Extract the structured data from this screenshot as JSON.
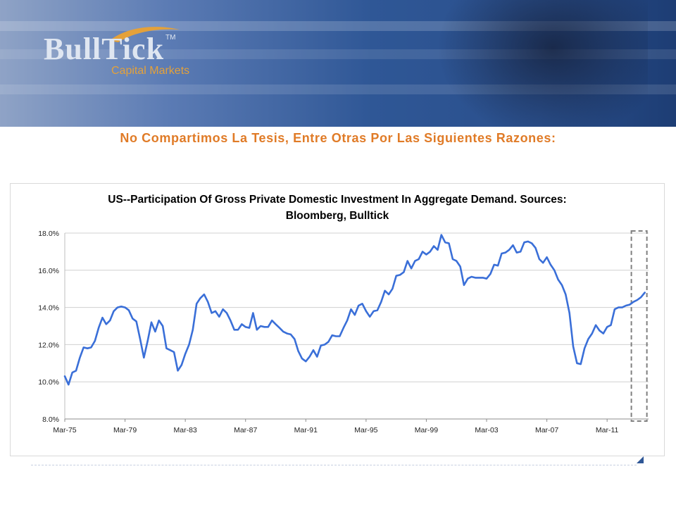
{
  "logo": {
    "brand": "BullTick",
    "trademark": "TM",
    "subtitle": "Capital Markets"
  },
  "slide": {
    "title": "No Compartimos La Tesis, Entre Otras Por Las Siguientes Razones:"
  },
  "colors": {
    "title": "#e07b27",
    "line": "#3a6fd8",
    "highlight_box": "#7f7f7f"
  },
  "chart_data": {
    "type": "line",
    "title_lines": [
      "US--Participation Of Gross Private Domestic Investment In Aggregate Demand. Sources:",
      "Bloomberg, Bulltick"
    ],
    "xlabel": "",
    "ylabel": "",
    "ylim": [
      8.0,
      18.0
    ],
    "yticks": [
      "8.0%",
      "10.0%",
      "12.0%",
      "14.0%",
      "16.0%",
      "18.0%"
    ],
    "ytick_values": [
      8,
      10,
      12,
      14,
      16,
      18
    ],
    "xticks": [
      "Mar-75",
      "Mar-79",
      "Mar-83",
      "Mar-87",
      "Mar-91",
      "Mar-95",
      "Mar-99",
      "Mar-03",
      "Mar-07",
      "Mar-11"
    ],
    "xtick_years": [
      1975,
      1979,
      1983,
      1987,
      1991,
      1995,
      1999,
      2003,
      2007,
      2011
    ],
    "xlim": [
      1975,
      2013.75
    ],
    "grid": true,
    "highlight_range": [
      2012.75,
      2013.5
    ],
    "series": [
      {
        "values": [
          [
            1975.0,
            10.3
          ],
          [
            1975.25,
            9.85
          ],
          [
            1975.5,
            10.5
          ],
          [
            1975.75,
            10.6
          ],
          [
            1976.0,
            11.3
          ],
          [
            1976.25,
            11.85
          ],
          [
            1976.5,
            11.8
          ],
          [
            1976.75,
            11.85
          ],
          [
            1977.0,
            12.2
          ],
          [
            1977.25,
            12.9
          ],
          [
            1977.5,
            13.45
          ],
          [
            1977.75,
            13.1
          ],
          [
            1978.0,
            13.3
          ],
          [
            1978.25,
            13.8
          ],
          [
            1978.5,
            14.0
          ],
          [
            1978.75,
            14.05
          ],
          [
            1979.0,
            14.0
          ],
          [
            1979.25,
            13.85
          ],
          [
            1979.5,
            13.4
          ],
          [
            1979.75,
            13.25
          ],
          [
            1980.0,
            12.3
          ],
          [
            1980.25,
            11.3
          ],
          [
            1980.5,
            12.2
          ],
          [
            1980.75,
            13.2
          ],
          [
            1981.0,
            12.7
          ],
          [
            1981.25,
            13.3
          ],
          [
            1981.5,
            13.0
          ],
          [
            1981.75,
            11.8
          ],
          [
            1982.0,
            11.7
          ],
          [
            1982.25,
            11.6
          ],
          [
            1982.5,
            10.6
          ],
          [
            1982.75,
            10.9
          ],
          [
            1983.0,
            11.5
          ],
          [
            1983.25,
            12.0
          ],
          [
            1983.5,
            12.8
          ],
          [
            1983.75,
            14.2
          ],
          [
            1984.0,
            14.5
          ],
          [
            1984.25,
            14.7
          ],
          [
            1984.5,
            14.3
          ],
          [
            1984.75,
            13.7
          ],
          [
            1985.0,
            13.8
          ],
          [
            1985.25,
            13.5
          ],
          [
            1985.5,
            13.9
          ],
          [
            1985.75,
            13.7
          ],
          [
            1986.0,
            13.3
          ],
          [
            1986.25,
            12.8
          ],
          [
            1986.5,
            12.8
          ],
          [
            1986.75,
            13.1
          ],
          [
            1987.0,
            12.95
          ],
          [
            1987.25,
            12.9
          ],
          [
            1987.5,
            13.7
          ],
          [
            1987.75,
            12.8
          ],
          [
            1988.0,
            13.0
          ],
          [
            1988.25,
            12.95
          ],
          [
            1988.5,
            12.95
          ],
          [
            1988.75,
            13.3
          ],
          [
            1989.0,
            13.1
          ],
          [
            1989.25,
            12.9
          ],
          [
            1989.5,
            12.7
          ],
          [
            1989.75,
            12.6
          ],
          [
            1990.0,
            12.55
          ],
          [
            1990.25,
            12.3
          ],
          [
            1990.5,
            11.65
          ],
          [
            1990.75,
            11.25
          ],
          [
            1991.0,
            11.1
          ],
          [
            1991.25,
            11.35
          ],
          [
            1991.5,
            11.7
          ],
          [
            1991.75,
            11.35
          ],
          [
            1992.0,
            11.95
          ],
          [
            1992.25,
            12.0
          ],
          [
            1992.5,
            12.15
          ],
          [
            1992.75,
            12.5
          ],
          [
            1993.0,
            12.45
          ],
          [
            1993.25,
            12.45
          ],
          [
            1993.5,
            12.9
          ],
          [
            1993.75,
            13.3
          ],
          [
            1994.0,
            13.9
          ],
          [
            1994.25,
            13.6
          ],
          [
            1994.5,
            14.1
          ],
          [
            1994.75,
            14.2
          ],
          [
            1995.0,
            13.8
          ],
          [
            1995.25,
            13.5
          ],
          [
            1995.5,
            13.8
          ],
          [
            1995.75,
            13.85
          ],
          [
            1996.0,
            14.3
          ],
          [
            1996.25,
            14.9
          ],
          [
            1996.5,
            14.7
          ],
          [
            1996.75,
            15.0
          ],
          [
            1997.0,
            15.7
          ],
          [
            1997.25,
            15.75
          ],
          [
            1997.5,
            15.9
          ],
          [
            1997.75,
            16.5
          ],
          [
            1998.0,
            16.1
          ],
          [
            1998.25,
            16.5
          ],
          [
            1998.5,
            16.6
          ],
          [
            1998.75,
            17.0
          ],
          [
            1999.0,
            16.85
          ],
          [
            1999.25,
            17.0
          ],
          [
            1999.5,
            17.3
          ],
          [
            1999.75,
            17.1
          ],
          [
            2000.0,
            17.9
          ],
          [
            2000.25,
            17.5
          ],
          [
            2000.5,
            17.45
          ],
          [
            2000.75,
            16.6
          ],
          [
            2001.0,
            16.5
          ],
          [
            2001.25,
            16.2
          ],
          [
            2001.5,
            15.2
          ],
          [
            2001.75,
            15.55
          ],
          [
            2002.0,
            15.65
          ],
          [
            2002.25,
            15.6
          ],
          [
            2002.5,
            15.6
          ],
          [
            2002.75,
            15.6
          ],
          [
            2003.0,
            15.55
          ],
          [
            2003.25,
            15.8
          ],
          [
            2003.5,
            16.3
          ],
          [
            2003.75,
            16.25
          ],
          [
            2004.0,
            16.9
          ],
          [
            2004.25,
            16.95
          ],
          [
            2004.5,
            17.1
          ],
          [
            2004.75,
            17.35
          ],
          [
            2005.0,
            16.95
          ],
          [
            2005.25,
            17.0
          ],
          [
            2005.5,
            17.5
          ],
          [
            2005.75,
            17.55
          ],
          [
            2006.0,
            17.45
          ],
          [
            2006.25,
            17.2
          ],
          [
            2006.5,
            16.6
          ],
          [
            2006.75,
            16.4
          ],
          [
            2007.0,
            16.7
          ],
          [
            2007.25,
            16.3
          ],
          [
            2007.5,
            16.0
          ],
          [
            2007.75,
            15.5
          ],
          [
            2008.0,
            15.2
          ],
          [
            2008.25,
            14.7
          ],
          [
            2008.5,
            13.7
          ],
          [
            2008.75,
            11.9
          ],
          [
            2009.0,
            11.0
          ],
          [
            2009.25,
            10.95
          ],
          [
            2009.5,
            11.8
          ],
          [
            2009.75,
            12.3
          ],
          [
            2010.0,
            12.6
          ],
          [
            2010.25,
            13.05
          ],
          [
            2010.5,
            12.75
          ],
          [
            2010.75,
            12.6
          ],
          [
            2011.0,
            12.95
          ],
          [
            2011.25,
            13.05
          ],
          [
            2011.5,
            13.9
          ],
          [
            2011.75,
            14.0
          ],
          [
            2012.0,
            14.0
          ],
          [
            2012.25,
            14.1
          ],
          [
            2012.5,
            14.15
          ],
          [
            2012.75,
            14.3
          ],
          [
            2013.0,
            14.4
          ],
          [
            2013.25,
            14.55
          ],
          [
            2013.5,
            14.8
          ]
        ]
      }
    ]
  }
}
